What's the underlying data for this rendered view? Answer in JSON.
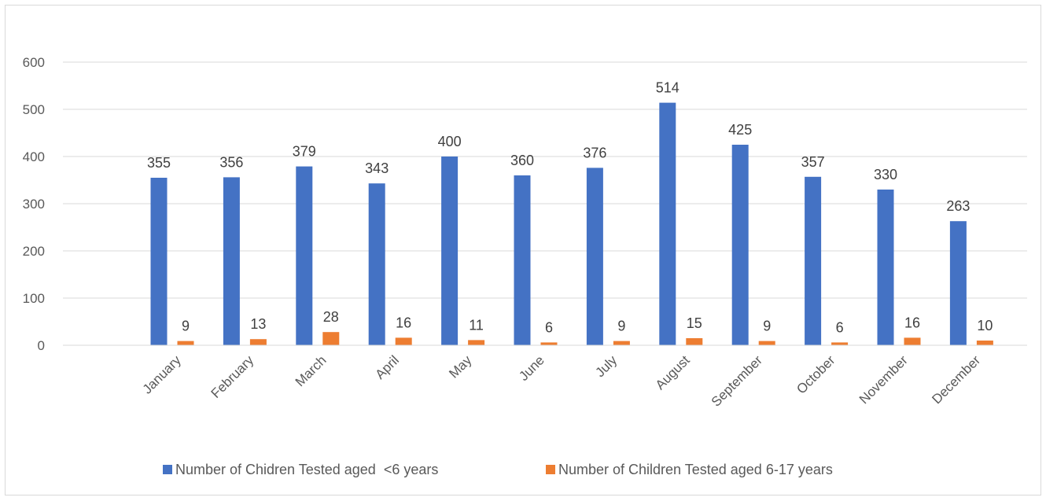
{
  "chart_data": {
    "type": "bar",
    "title": "",
    "xlabel": "",
    "ylabel": "",
    "categories": [
      "January",
      "February",
      "March",
      "April",
      "May",
      "June",
      "July",
      "August",
      "September",
      "October",
      "November",
      "December"
    ],
    "series": [
      {
        "name": "Number of Chidren Tested aged  <6 years",
        "values": [
          355,
          356,
          379,
          343,
          400,
          360,
          376,
          514,
          425,
          357,
          330,
          263
        ],
        "color": "#4472C4"
      },
      {
        "name": "Number of Children Tested aged 6-17 years",
        "values": [
          9,
          13,
          28,
          16,
          11,
          6,
          9,
          15,
          9,
          6,
          16,
          10
        ],
        "color": "#ED7D31"
      }
    ],
    "ylim": [
      0,
      600
    ],
    "yticks": [
      0,
      100,
      200,
      300,
      400,
      500,
      600
    ],
    "grid": true,
    "legend_position": "bottom",
    "data_labels": true
  }
}
